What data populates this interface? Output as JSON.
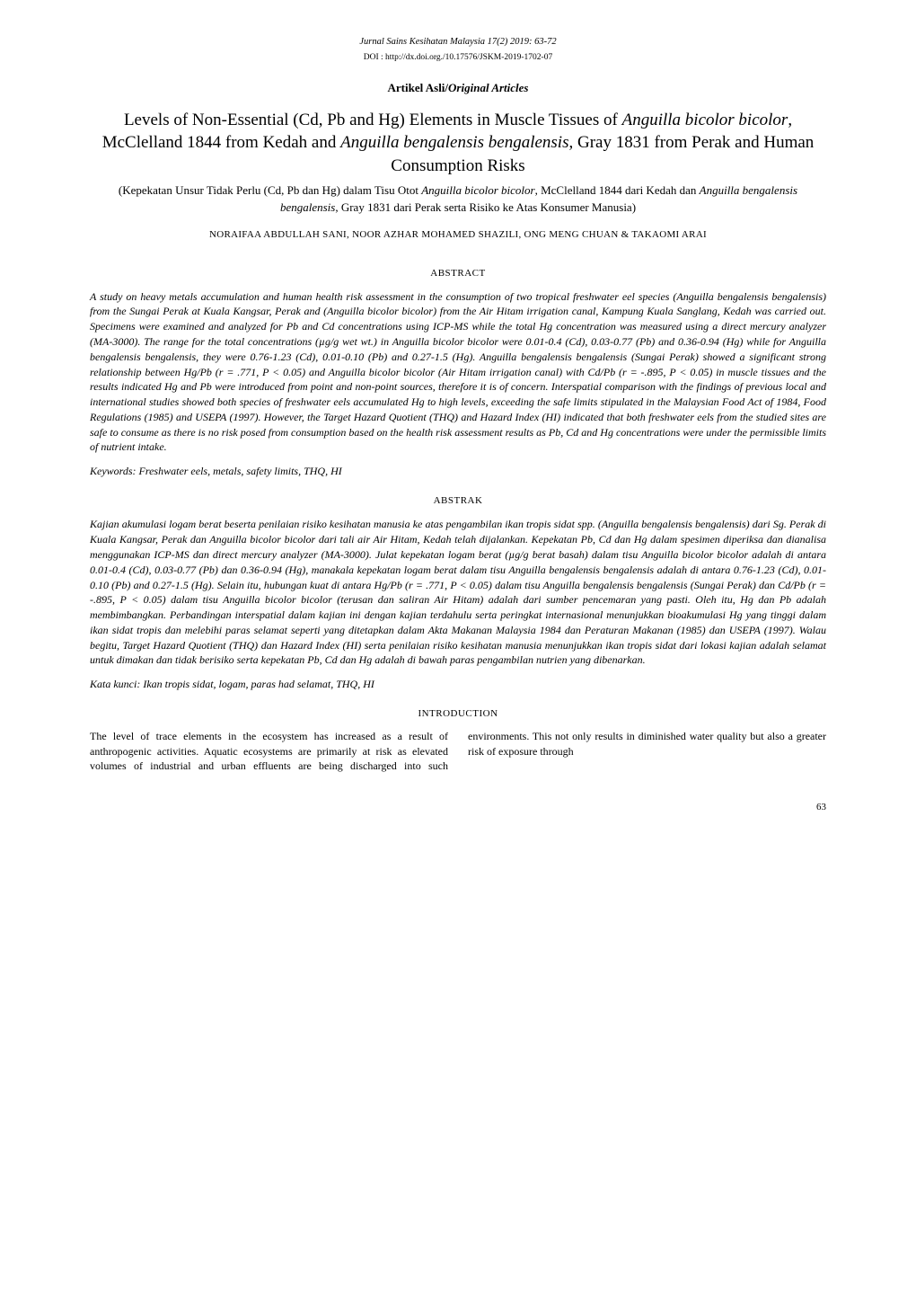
{
  "journal_line": "Jurnal Sains Kesihatan Malaysia 17(2) 2019: 63-72",
  "doi_line": "DOI : http://dx.doi.org./10.17576/JSKM-2019-1702-07",
  "article_type_plain": "Artikel Asli",
  "article_type_italic": "Original Articles",
  "title_en_1": "Levels of Non-Essential (Cd, Pb and Hg) Elements in Muscle Tissues of ",
  "title_en_2_it": "Anguilla bicolor bicolor",
  "title_en_3": ", McClelland 1844 from Kedah and ",
  "title_en_4_it": "Anguilla bengalensis bengalensis",
  "title_en_5": ", Gray 1831 from Perak and Human Consumption Risks",
  "title_ms_1": "(Kepekatan Unsur Tidak Perlu (Cd, Pb dan Hg) dalam Tisu Otot ",
  "title_ms_2_it": "Anguilla bicolor bicolor",
  "title_ms_3": ", McClelland 1844 dari Kedah dan ",
  "title_ms_4_it": "Anguilla bengalensis bengalensis",
  "title_ms_5": ", Gray 1831 dari Perak serta Risiko ke Atas Konsumer Manusia)",
  "authors": "NORAIFAA ABDULLAH SANI, NOOR AZHAR MOHAMED SHAZILI, ONG MENG CHUAN & TAKAOMI ARAI",
  "heading_abstract": "ABSTRACT",
  "abstract_en": "A study on heavy metals accumulation and human health risk assessment in the consumption of two tropical freshwater eel species (Anguilla bengalensis bengalensis) from the Sungai Perak at Kuala Kangsar, Perak and (Anguilla bicolor bicolor) from the Air Hitam irrigation canal, Kampung Kuala Sanglang, Kedah was carried out. Specimens were examined and analyzed for Pb and Cd concentrations using ICP-MS while the total Hg concentration was measured using a direct mercury analyzer (MA-3000). The range for the total concentrations (µg/g wet wt.) in Anguilla bicolor bicolor were 0.01-0.4 (Cd), 0.03-0.77 (Pb) and 0.36-0.94 (Hg) while for Anguilla bengalensis bengalensis, they were 0.76-1.23 (Cd), 0.01-0.10 (Pb) and 0.27-1.5 (Hg). Anguilla bengalensis bengalensis (Sungai Perak) showed a significant strong relationship between Hg/Pb (r = .771, P < 0.05) and Anguilla bicolor bicolor (Air Hitam irrigation canal) with Cd/Pb (r = -.895, P < 0.05) in muscle tissues and the results indicated Hg and Pb were introduced from point and non-point sources, therefore it is of concern. Interspatial comparison with the findings of previous local and international studies showed both species of freshwater eels accumulated Hg to high levels, exceeding the safe limits stipulated in the Malaysian Food Act of 1984, Food Regulations (1985) and USEPA (1997). However, the Target Hazard Quotient (THQ) and Hazard Index (HI) indicated that both freshwater eels from the studied sites are safe to consume as there is no risk posed from consumption based on the health risk assessment results as Pb, Cd and Hg concentrations were under the permissible limits of nutrient intake.",
  "keywords_en": "Keywords: Freshwater eels, metals, safety limits, THQ, HI",
  "heading_abstrak": "ABSTRAK",
  "abstract_ms": "Kajian akumulasi logam berat beserta penilaian risiko kesihatan manusia ke atas pengambilan ikan tropis sidat spp. (Anguilla bengalensis bengalensis) dari Sg. Perak di Kuala Kangsar, Perak dan Anguilla bicolor bicolor dari tali air Air Hitam, Kedah telah dijalankan. Kepekatan Pb, Cd dan Hg dalam spesimen diperiksa dan dianalisa menggunakan ICP-MS dan direct mercury analyzer (MA-3000). Julat kepekatan logam berat (µg/g berat basah) dalam tisu Anguilla bicolor bicolor adalah di antara 0.01-0.4 (Cd), 0.03-0.77 (Pb) dan 0.36-0.94 (Hg), manakala kepekatan logam berat dalam tisu Anguilla bengalensis bengalensis adalah di antara 0.76-1.23 (Cd), 0.01-0.10 (Pb) and 0.27-1.5 (Hg). Selain itu, hubungan kuat di antara Hg/Pb (r = .771, P < 0.05) dalam tisu Anguilla bengalensis bengalensis (Sungai Perak) dan Cd/Pb (r = -.895, P < 0.05) dalam tisu Anguilla bicolor bicolor (terusan dan saliran Air Hitam) adalah dari sumber pencemaran yang pasti. Oleh itu, Hg dan Pb adalah membimbangkan. Perbandingan interspatial dalam kajian ini dengan kajian terdahulu serta peringkat internasional menunjukkan bioakumulasi Hg yang tinggi dalam ikan sidat tropis dan melebihi paras selamat seperti yang ditetapkan dalam Akta Makanan Malaysia 1984 dan Peraturan Makanan (1985) dan USEPA (1997). Walau begitu, Target Hazard Quotient (THQ) dan Hazard Index (HI) serta penilaian risiko kesihatan manusia menunjukkan ikan tropis sidat dari lokasi kajian adalah selamat untuk dimakan dan tidak berisiko serta kepekatan Pb, Cd dan Hg adalah di bawah paras pengambilan nutrien yang dibenarkan.",
  "keywords_ms": "Kata kunci: Ikan tropis sidat, logam, paras had selamat, THQ, HI",
  "heading_intro": "INTRODUCTION",
  "intro_left": "The level of trace elements in the ecosystem has increased as a result of anthropogenic activities. Aquatic",
  "intro_right": "ecosystems are primarily at risk as elevated volumes of industrial and urban effluents are being discharged into such environments. This not only results in diminished water quality but also a greater risk of exposure through",
  "page_number": "63"
}
